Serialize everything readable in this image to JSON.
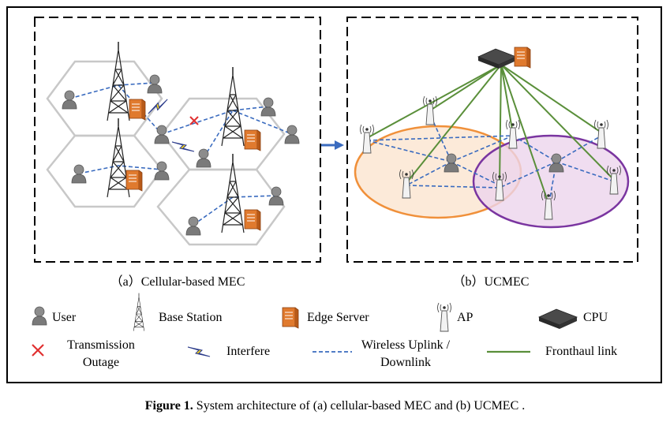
{
  "panel_a": {
    "label": "（a）Cellular-based MEC"
  },
  "panel_b": {
    "label": "（b）UCMEC"
  },
  "legend": {
    "user": "User",
    "base_station": "Base Station",
    "edge_server": "Edge Server",
    "ap": "AP",
    "cpu": "CPU",
    "outage_line1": "Transmission",
    "outage_line2": "Outage",
    "interfere": "Interfere",
    "wireless_line1": "Wireless Uplink /",
    "wireless_line2": "Downlink",
    "fronthaul": "Fronthaul link"
  },
  "caption": {
    "label": "Figure 1.",
    "text": " System architecture of (a) cellular-based MEC and (b) UCMEC ."
  },
  "colors": {
    "user": "#8a8a8a",
    "server": "#e07a2e",
    "wireless": "#3a6bbf",
    "fronthaul": "#5a8f3a",
    "outage": "#e03030",
    "interfere": "#f0d020",
    "cluster_orange": "#f0903a",
    "cluster_purple": "#7a35a0",
    "hex": "#c8c8c8"
  }
}
